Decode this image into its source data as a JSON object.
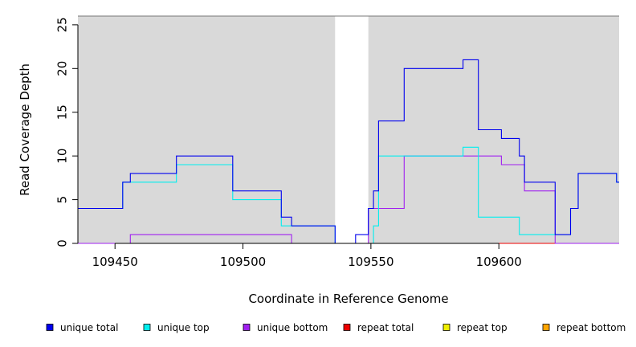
{
  "chart_data": {
    "type": "line",
    "title": "",
    "xlabel": "Coordinate in Reference Genome",
    "ylabel": "Read Coverage Depth",
    "xlim": [
      109435.5,
      109647
    ],
    "ylim": [
      0,
      26
    ],
    "x_ticks": [
      109450,
      109500,
      109550,
      109600
    ],
    "y_ticks": [
      0,
      5,
      10,
      15,
      20,
      25
    ],
    "x_tick_labels": [
      "109450",
      "109500",
      "109550",
      "109600"
    ],
    "y_tick_labels": [
      "0",
      "5",
      "10",
      "15",
      "20",
      "25"
    ],
    "shaded_regions": [
      [
        109435.5,
        109536
      ],
      [
        109549,
        109647
      ]
    ],
    "shade_color": "#d9d9d9",
    "legend_position": "bottom",
    "legend": [
      {
        "name": "unique total",
        "color": "#0000ee"
      },
      {
        "name": "unique top",
        "color": "#00eeee"
      },
      {
        "name": "unique bottom",
        "color": "#a020f0"
      },
      {
        "name": "repeat total",
        "color": "#ee0000"
      },
      {
        "name": "repeat top",
        "color": "#eeee00"
      },
      {
        "name": "repeat bottom",
        "color": "#ffa500"
      }
    ],
    "series": [
      {
        "name": "unique total",
        "color": "#0000ee",
        "x": [
          109435.5,
          109453,
          109456,
          109474,
          109496,
          109515,
          109519,
          109536,
          109544,
          109549,
          109551,
          109553,
          109563,
          109586,
          109592,
          109601,
          109608,
          109610,
          109622,
          109628,
          109631,
          109646,
          109647
        ],
        "y": [
          4,
          7,
          8,
          10,
          6,
          3,
          2,
          0,
          1,
          4,
          6,
          14,
          20,
          21,
          13,
          12,
          10,
          7,
          1,
          4,
          8,
          7,
          7
        ]
      },
      {
        "name": "unique top",
        "color": "#00eeee",
        "x": [
          109435.5,
          109453,
          109456,
          109474,
          109496,
          109515,
          109536,
          109551,
          109553,
          109563,
          109586,
          109592,
          109601,
          109608,
          109622,
          109628,
          109631,
          109646,
          109647
        ],
        "y": [
          4,
          7,
          7,
          9,
          5,
          2,
          0,
          2,
          10,
          10,
          11,
          3,
          3,
          1,
          1,
          4,
          8,
          7,
          7
        ]
      },
      {
        "name": "unique bottom",
        "color": "#a020f0",
        "x": [
          109435.5,
          109456,
          109519,
          109549,
          109563,
          109601,
          109610,
          109622,
          109647
        ],
        "y": [
          0,
          1,
          0,
          4,
          10,
          9,
          6,
          0,
          0
        ]
      },
      {
        "name": "repeat total",
        "color": "#ee0000",
        "x": [
          109435.5,
          109647
        ],
        "y": [
          0,
          0
        ]
      },
      {
        "name": "repeat top",
        "color": "#eeee00",
        "x": [
          109435.5,
          109647
        ],
        "y": [
          0,
          0
        ]
      },
      {
        "name": "repeat bottom",
        "color": "#ffa500",
        "x": [
          109435.5,
          109647
        ],
        "y": [
          0,
          0
        ]
      }
    ]
  }
}
